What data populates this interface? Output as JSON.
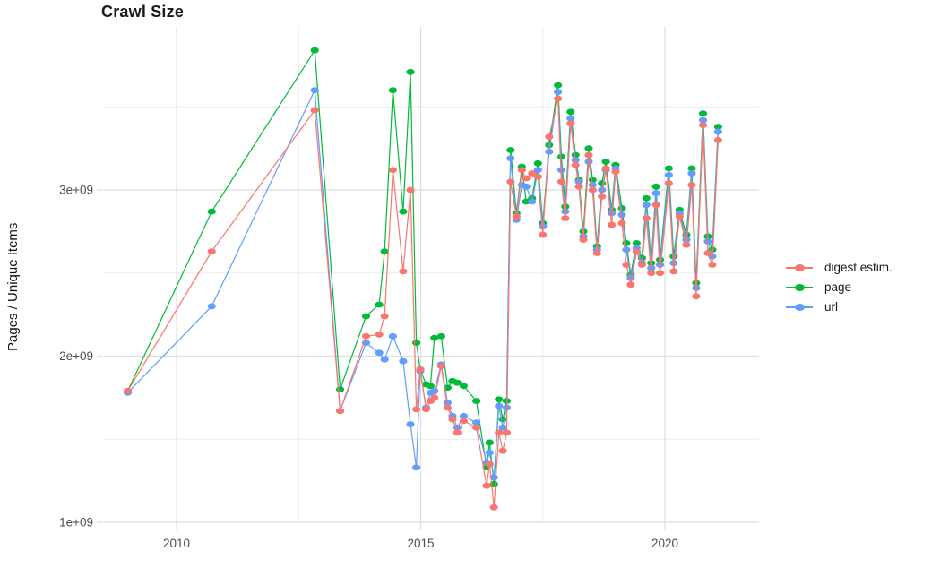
{
  "title": "Crawl Size",
  "axes": {
    "y_label": "Pages / Unique Items",
    "x_ticks": [
      {
        "label": "2010",
        "year": 2010
      },
      {
        "label": "2015",
        "year": 2015
      },
      {
        "label": "2020",
        "year": 2020
      }
    ],
    "y_ticks": [
      {
        "label": "1e+09",
        "value": 1
      },
      {
        "label": "2e+09",
        "value": 2
      },
      {
        "label": "3e+09",
        "value": 3
      }
    ]
  },
  "chart_data": {
    "type": "line",
    "title": "Crawl Size",
    "xlabel": "",
    "ylabel": "Pages / Unique Items",
    "values_unit": "1e9 (billions)",
    "xlim": [
      2008.4,
      2021.95
    ],
    "ylim": [
      0.95,
      3.98
    ],
    "grid": {
      "x_minor": [
        2012.5,
        2017.5
      ],
      "y_minor": [
        1.5,
        2.5,
        3.5
      ],
      "on": true
    },
    "legend_position": "right",
    "x": [
      2009.0,
      2010.72,
      2012.83,
      2013.35,
      2013.88,
      2014.15,
      2014.26,
      2014.43,
      2014.64,
      2014.79,
      2014.91,
      2014.99,
      2015.11,
      2015.2,
      2015.28,
      2015.42,
      2015.55,
      2015.65,
      2015.75,
      2015.88,
      2016.14,
      2016.35,
      2016.41,
      2016.5,
      2016.6,
      2016.68,
      2016.76,
      2016.84,
      2016.96,
      2017.07,
      2017.16,
      2017.28,
      2017.4,
      2017.5,
      2017.63,
      2017.81,
      2017.88,
      2017.96,
      2018.07,
      2018.17,
      2018.24,
      2018.33,
      2018.44,
      2018.52,
      2018.61,
      2018.71,
      2018.79,
      2018.91,
      2018.99,
      2019.12,
      2019.21,
      2019.3,
      2019.42,
      2019.53,
      2019.62,
      2019.72,
      2019.82,
      2019.9,
      2020.08,
      2020.18,
      2020.3,
      2020.44,
      2020.55,
      2020.64,
      2020.78,
      2020.88,
      2020.97,
      2021.09
    ],
    "series": [
      {
        "name": "digest estim.",
        "color": "#F8766D",
        "draw_order": 3,
        "values": [
          1.79,
          2.63,
          3.48,
          1.67,
          2.12,
          2.13,
          2.24,
          3.12,
          2.51,
          3.0,
          1.68,
          1.92,
          1.68,
          1.73,
          1.75,
          1.94,
          1.69,
          1.62,
          1.54,
          1.61,
          1.57,
          1.22,
          1.35,
          1.09,
          1.54,
          1.43,
          1.54,
          3.05,
          2.84,
          3.12,
          3.07,
          3.1,
          3.08,
          2.73,
          3.32,
          3.55,
          3.05,
          2.83,
          3.4,
          3.15,
          3.02,
          2.7,
          3.21,
          3.0,
          2.62,
          2.96,
          3.13,
          2.79,
          3.11,
          2.8,
          2.55,
          2.43,
          2.63,
          2.55,
          2.83,
          2.5,
          2.91,
          2.5,
          3.04,
          2.51,
          2.84,
          2.67,
          3.03,
          2.36,
          3.39,
          2.62,
          2.55,
          3.3
        ]
      },
      {
        "name": "page",
        "color": "#00BA38",
        "draw_order": 1,
        "values": [
          1.79,
          2.87,
          3.84,
          1.8,
          2.24,
          2.31,
          2.63,
          3.6,
          2.87,
          3.71,
          2.08,
          1.92,
          1.83,
          1.82,
          2.11,
          2.12,
          1.81,
          1.85,
          1.84,
          1.82,
          1.73,
          1.33,
          1.48,
          1.23,
          1.74,
          1.62,
          1.73,
          3.24,
          2.86,
          3.14,
          2.93,
          2.95,
          3.16,
          2.8,
          3.27,
          3.63,
          3.2,
          2.9,
          3.47,
          3.21,
          3.06,
          2.75,
          3.25,
          3.06,
          2.66,
          3.04,
          3.17,
          2.88,
          3.15,
          2.89,
          2.68,
          2.49,
          2.68,
          2.59,
          2.95,
          2.56,
          3.02,
          2.58,
          3.13,
          2.6,
          2.88,
          2.73,
          3.13,
          2.44,
          3.46,
          2.72,
          2.64,
          3.38
        ]
      },
      {
        "name": "url",
        "color": "#619CFF",
        "draw_order": 2,
        "values": [
          1.78,
          2.3,
          3.6,
          1.67,
          2.08,
          2.02,
          1.98,
          2.12,
          1.97,
          1.59,
          1.33,
          1.91,
          1.69,
          1.78,
          1.79,
          1.95,
          1.72,
          1.64,
          1.57,
          1.64,
          1.6,
          1.36,
          1.42,
          1.27,
          1.7,
          1.57,
          1.69,
          3.19,
          2.82,
          3.03,
          3.02,
          2.93,
          3.12,
          2.78,
          3.23,
          3.59,
          3.12,
          2.87,
          3.43,
          3.18,
          3.05,
          2.72,
          3.17,
          3.03,
          2.64,
          3.0,
          3.12,
          2.86,
          3.13,
          2.85,
          2.64,
          2.47,
          2.65,
          2.56,
          2.91,
          2.53,
          2.98,
          2.55,
          3.09,
          2.56,
          2.86,
          2.7,
          3.1,
          2.41,
          3.42,
          2.69,
          2.6,
          3.35
        ]
      }
    ]
  },
  "colors": {
    "grid_major": "#dedede",
    "grid_minor": "#ececec",
    "tick_text": "#4d4d4d",
    "title_text": "#1a1a1a"
  }
}
